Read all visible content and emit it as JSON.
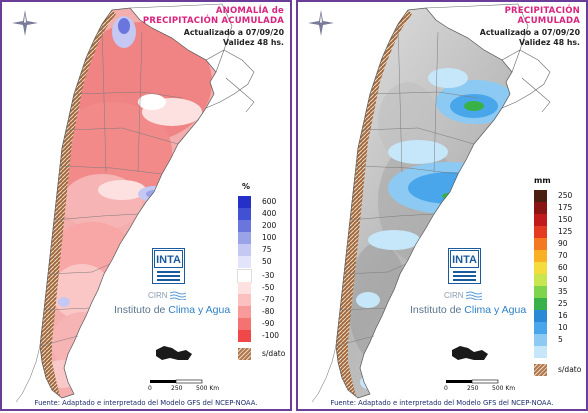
{
  "left_panel": {
    "title_line1": "ANOMALÍA de",
    "title_line2": "PRECIPITACIÓN ACUMULADA",
    "updated": "Actualizado a 07/09/20",
    "validity": "Validez 48 hs.",
    "legend_unit": "%",
    "legend": [
      {
        "label": "600",
        "color": "#2430c8"
      },
      {
        "label": "400",
        "color": "#4250d4"
      },
      {
        "label": "200",
        "color": "#6a76de"
      },
      {
        "label": "100",
        "color": "#9aa2e8"
      },
      {
        "label": "75",
        "color": "#c4c8f2"
      },
      {
        "label": "50",
        "color": "#e2e4fa"
      },
      {
        "label": "-30",
        "color": "#ffffff"
      },
      {
        "label": "-50",
        "color": "#fde1e1"
      },
      {
        "label": "-70",
        "color": "#fbc0c0"
      },
      {
        "label": "-80",
        "color": "#f89a9a"
      },
      {
        "label": "-90",
        "color": "#f47272"
      },
      {
        "label": "-100",
        "color": "#f04848"
      },
      {
        "label": "s/dato",
        "color": "#b07850"
      }
    ]
  },
  "right_panel": {
    "title_line1": "PRECIPITACIÓN",
    "title_line2": "ACUMULADA",
    "updated": "Actualizado a 07/09/20",
    "validity": "Validez 48 hs.",
    "legend_unit": "mm",
    "legend": [
      {
        "label": "250",
        "color": "#4a1e10"
      },
      {
        "label": "175",
        "color": "#8a1414"
      },
      {
        "label": "150",
        "color": "#c01a1a"
      },
      {
        "label": "125",
        "color": "#e53a22"
      },
      {
        "label": "90",
        "color": "#f47a20"
      },
      {
        "label": "70",
        "color": "#f9b024"
      },
      {
        "label": "60",
        "color": "#f4dc3c"
      },
      {
        "label": "50",
        "color": "#c8e650"
      },
      {
        "label": "35",
        "color": "#7ed44a"
      },
      {
        "label": "25",
        "color": "#38b248"
      },
      {
        "label": "16",
        "color": "#2a8ad8"
      },
      {
        "label": "10",
        "color": "#4aa6ea"
      },
      {
        "label": "5",
        "color": "#8ccaf4"
      },
      {
        "label": "",
        "color": "#c6e6fa"
      },
      {
        "label": "s/dato",
        "color": "#b07850"
      }
    ]
  },
  "logos": {
    "inta": "INTA",
    "cirn": "CIRN",
    "instituto_prefix": "Instituto de ",
    "instituto_highlight": "Clima y Agua"
  },
  "scale": {
    "label0": "0",
    "label1": "250",
    "label2": "500 Km"
  },
  "source": "Fuente: Adaptado e interpretado del Modelo GFS del NCEP-NOAA.",
  "icons": [
    "compass-rose-icon",
    "inta-logo",
    "cirn-logo",
    "scale-bar",
    "south-atlantic-islands"
  ]
}
